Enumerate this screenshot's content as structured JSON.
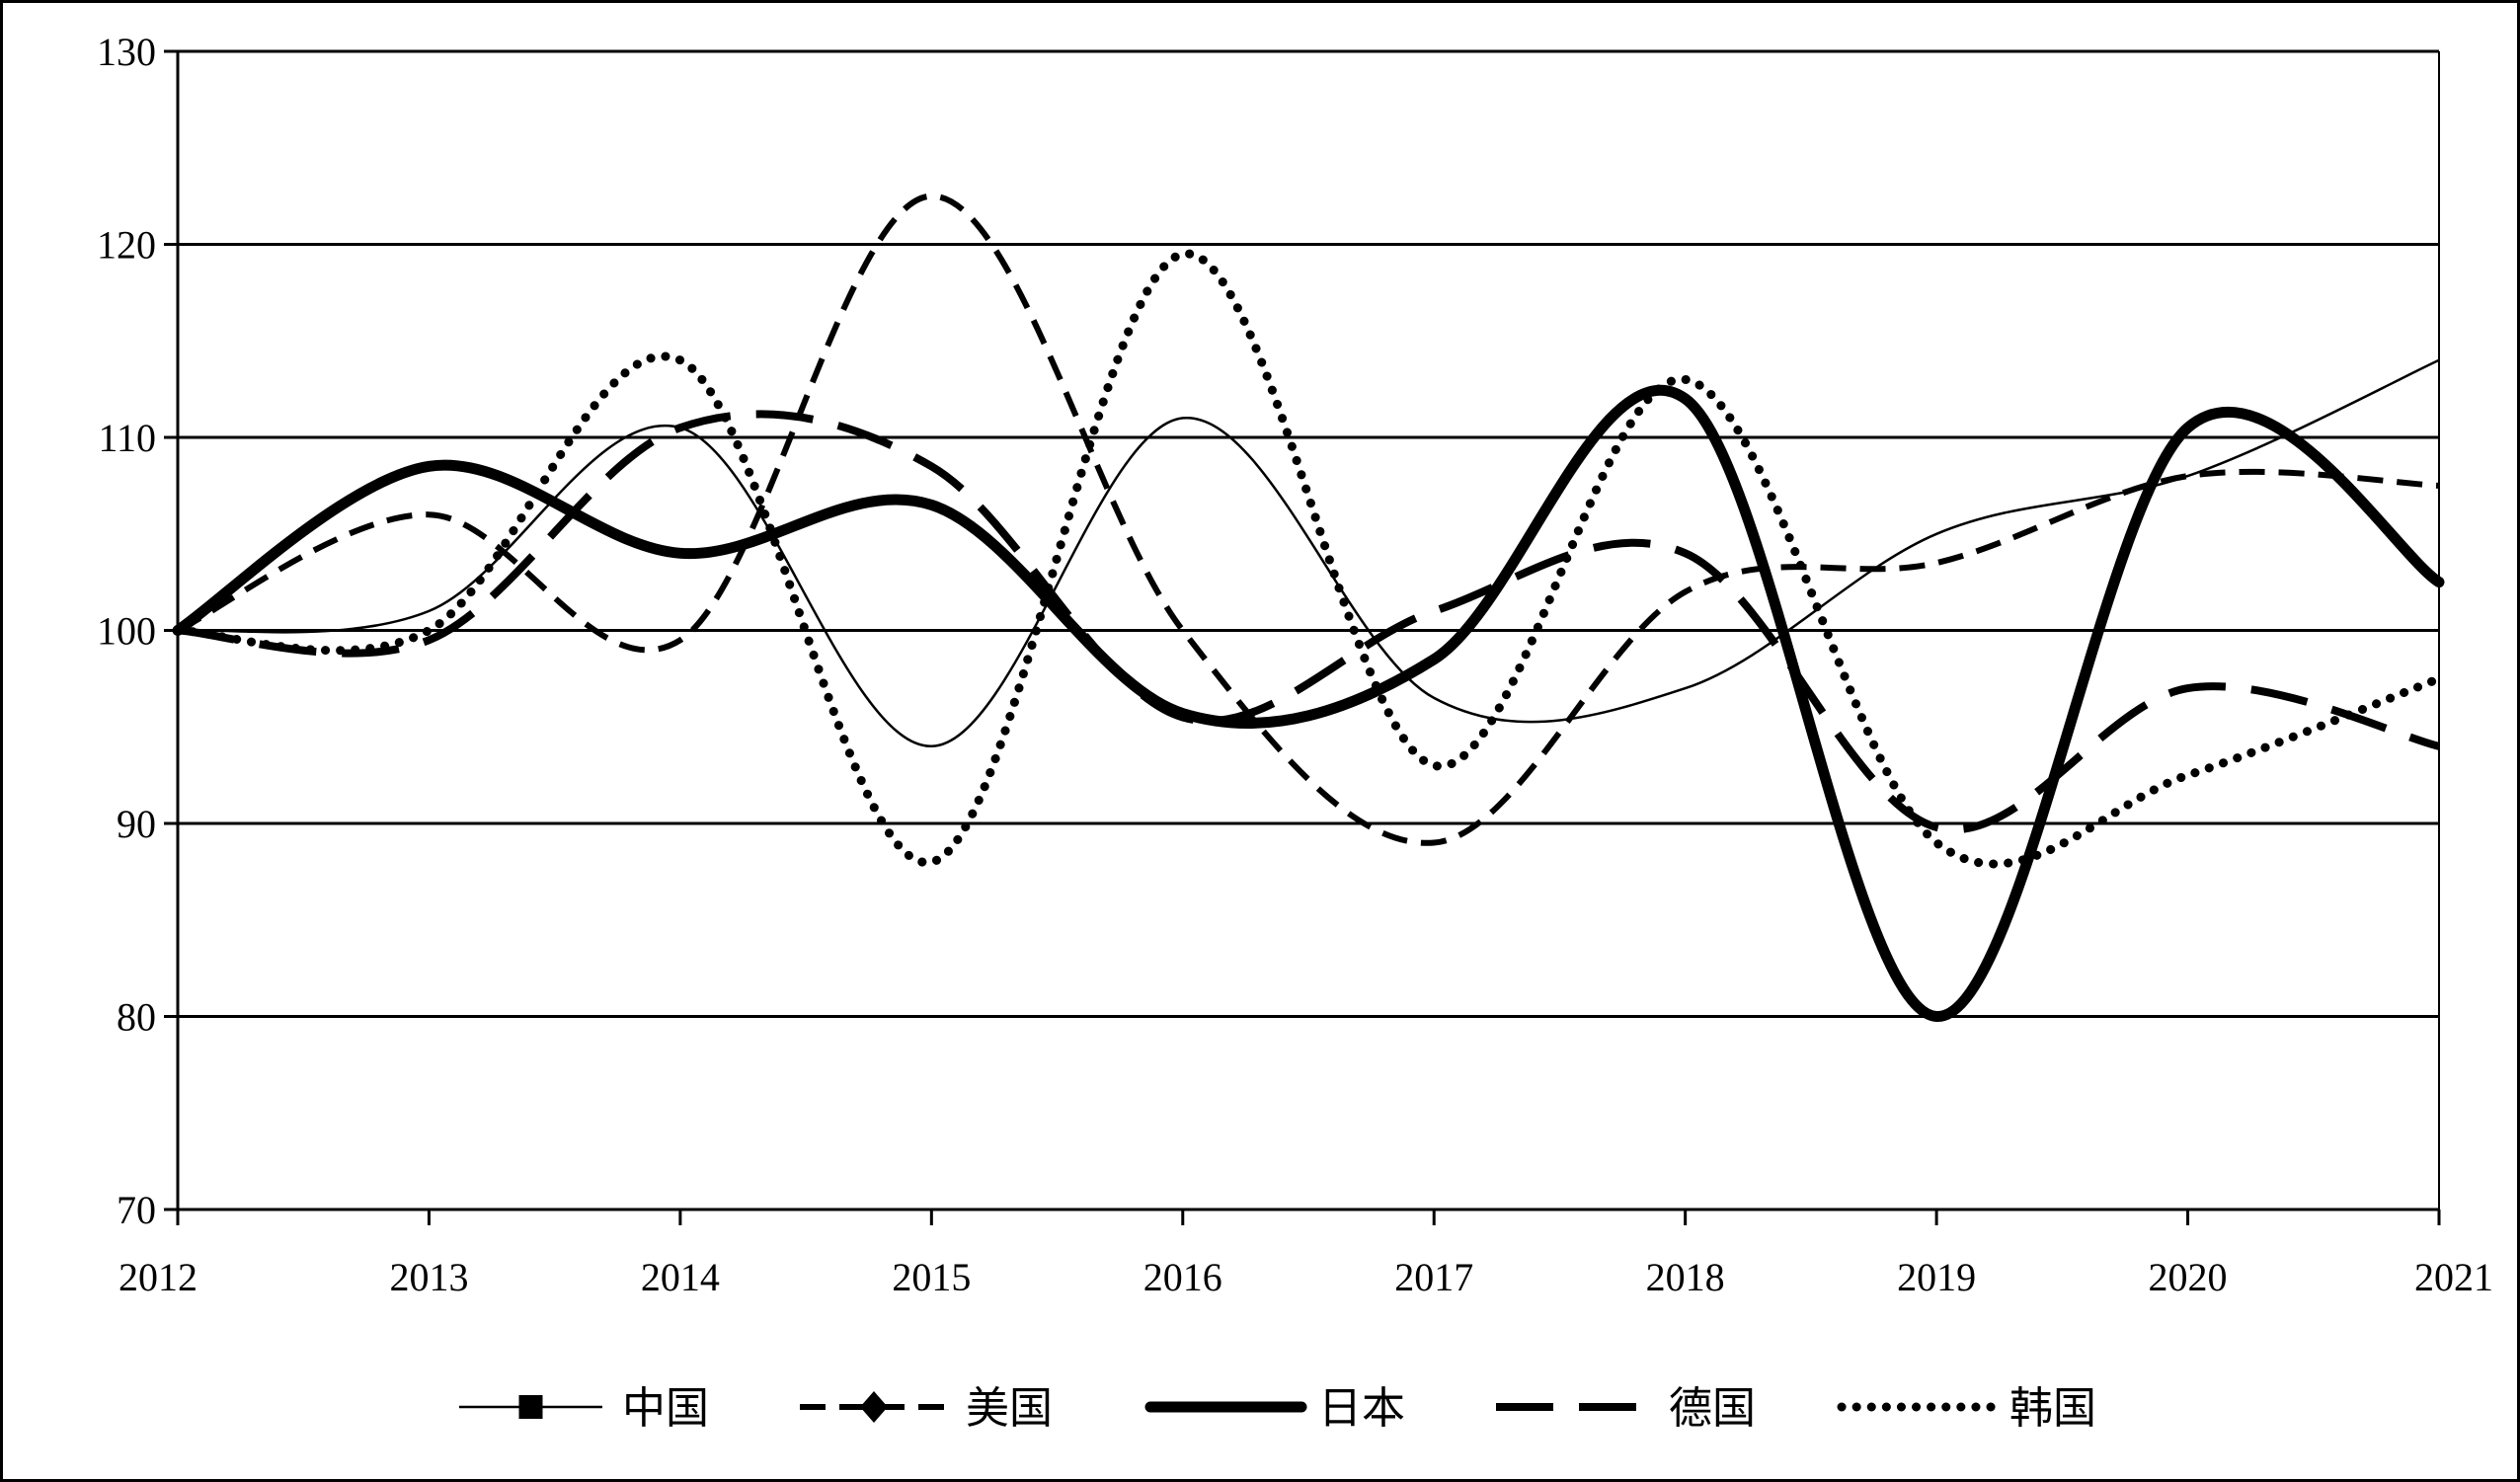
{
  "chart_data": {
    "type": "line",
    "title": "",
    "xlabel": "",
    "ylabel": "",
    "ylim": [
      70,
      130
    ],
    "y_ticks": [
      70,
      80,
      90,
      100,
      110,
      120,
      130
    ],
    "categories": [
      "2012",
      "2013",
      "2014",
      "2015",
      "2016",
      "2017",
      "2018",
      "2019",
      "2020",
      "2021"
    ],
    "grid": "horizontal",
    "legend_position": "bottom",
    "series": [
      {
        "name": "中国",
        "style": "thin-solid",
        "marker": "square",
        "values": [
          100,
          101,
          110.5,
          94,
          111,
          96.5,
          97,
          105,
          108,
          114
        ]
      },
      {
        "name": "美国",
        "style": "dashed",
        "marker": "diamond",
        "values": [
          100,
          106,
          99.5,
          122.5,
          100,
          89,
          102,
          103.5,
          108,
          107.5
        ]
      },
      {
        "name": "日本",
        "style": "thick-solid",
        "marker": "none",
        "values": [
          100,
          108.5,
          104,
          106.5,
          95.7,
          98.5,
          112,
          80,
          110.5,
          102.5
        ]
      },
      {
        "name": "德国",
        "style": "long-dash",
        "marker": "none",
        "values": [
          100,
          99.5,
          110.5,
          108.5,
          95.5,
          101,
          104,
          89.8,
          97,
          94
        ]
      },
      {
        "name": "韩国",
        "style": "dotted",
        "marker": "none",
        "values": [
          100,
          100,
          114,
          88,
          119.5,
          93,
          113,
          89,
          92.5,
          97.5
        ]
      }
    ]
  },
  "colors": {
    "line": "#000000",
    "grid": "#000000",
    "background": "#ffffff"
  }
}
